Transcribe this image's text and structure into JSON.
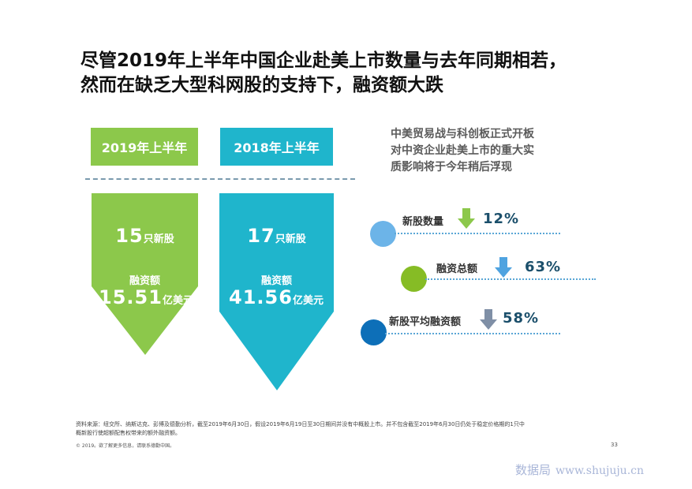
{
  "title": {
    "line1": "尽管2019年上半年中国企业赴美上市数量与去年同期相若，",
    "line2": "然而在缺乏大型科网股的支持下，融资额大跌"
  },
  "period_2019": {
    "header": "2019年上半年",
    "ipo_count": "15",
    "ipo_unit": "只新股",
    "amount_label": "融资额",
    "amount": "15.51",
    "amount_unit": "亿美元",
    "color": "#8cc84b"
  },
  "period_2018": {
    "header": "2018年上半年",
    "ipo_count": "17",
    "ipo_unit": "只新股",
    "amount_label": "融资额",
    "amount": "41.56",
    "amount_unit": "亿美元",
    "color": "#1fb5cc"
  },
  "note": {
    "line1": "中美贸易战与科创板正式开板",
    "line2": "对中资企业赴美上市的重大实",
    "line3": "质影响将于今年稍后浮现"
  },
  "metrics": [
    {
      "label": "新股数量",
      "value": "12%",
      "arrow_color": "#8cc84b",
      "circle_color": "#6cb4e8",
      "icon": "down-arrow-icon"
    },
    {
      "label": "融资总额",
      "value": "63%",
      "arrow_color": "#4fa3e0",
      "circle_color": "#86bc25",
      "icon": "down-arrow-icon"
    },
    {
      "label": "新股平均融资额",
      "value": "58%",
      "arrow_color": "#7f8fa6",
      "circle_color": "#0d6fb8",
      "icon": "down-arrow-icon"
    }
  ],
  "footer": {
    "source_line1": "资料来源：纽交所、纳斯达克、彭博及德勤分析，截至2019年6月30日，假设2019年6月19日至30日期间并没有中概股上市。并不包含截至2019年6月30日仍处于稳定价格期的1只中",
    "source_line2": "概新股行使超额配售权带来的额外融资额。",
    "copyright": "© 2019。欲了解更多信息，请联系德勤中国。",
    "page_number": "33"
  },
  "watermark": {
    "brand": "数据局",
    "site": "www.shujuju.cn"
  }
}
